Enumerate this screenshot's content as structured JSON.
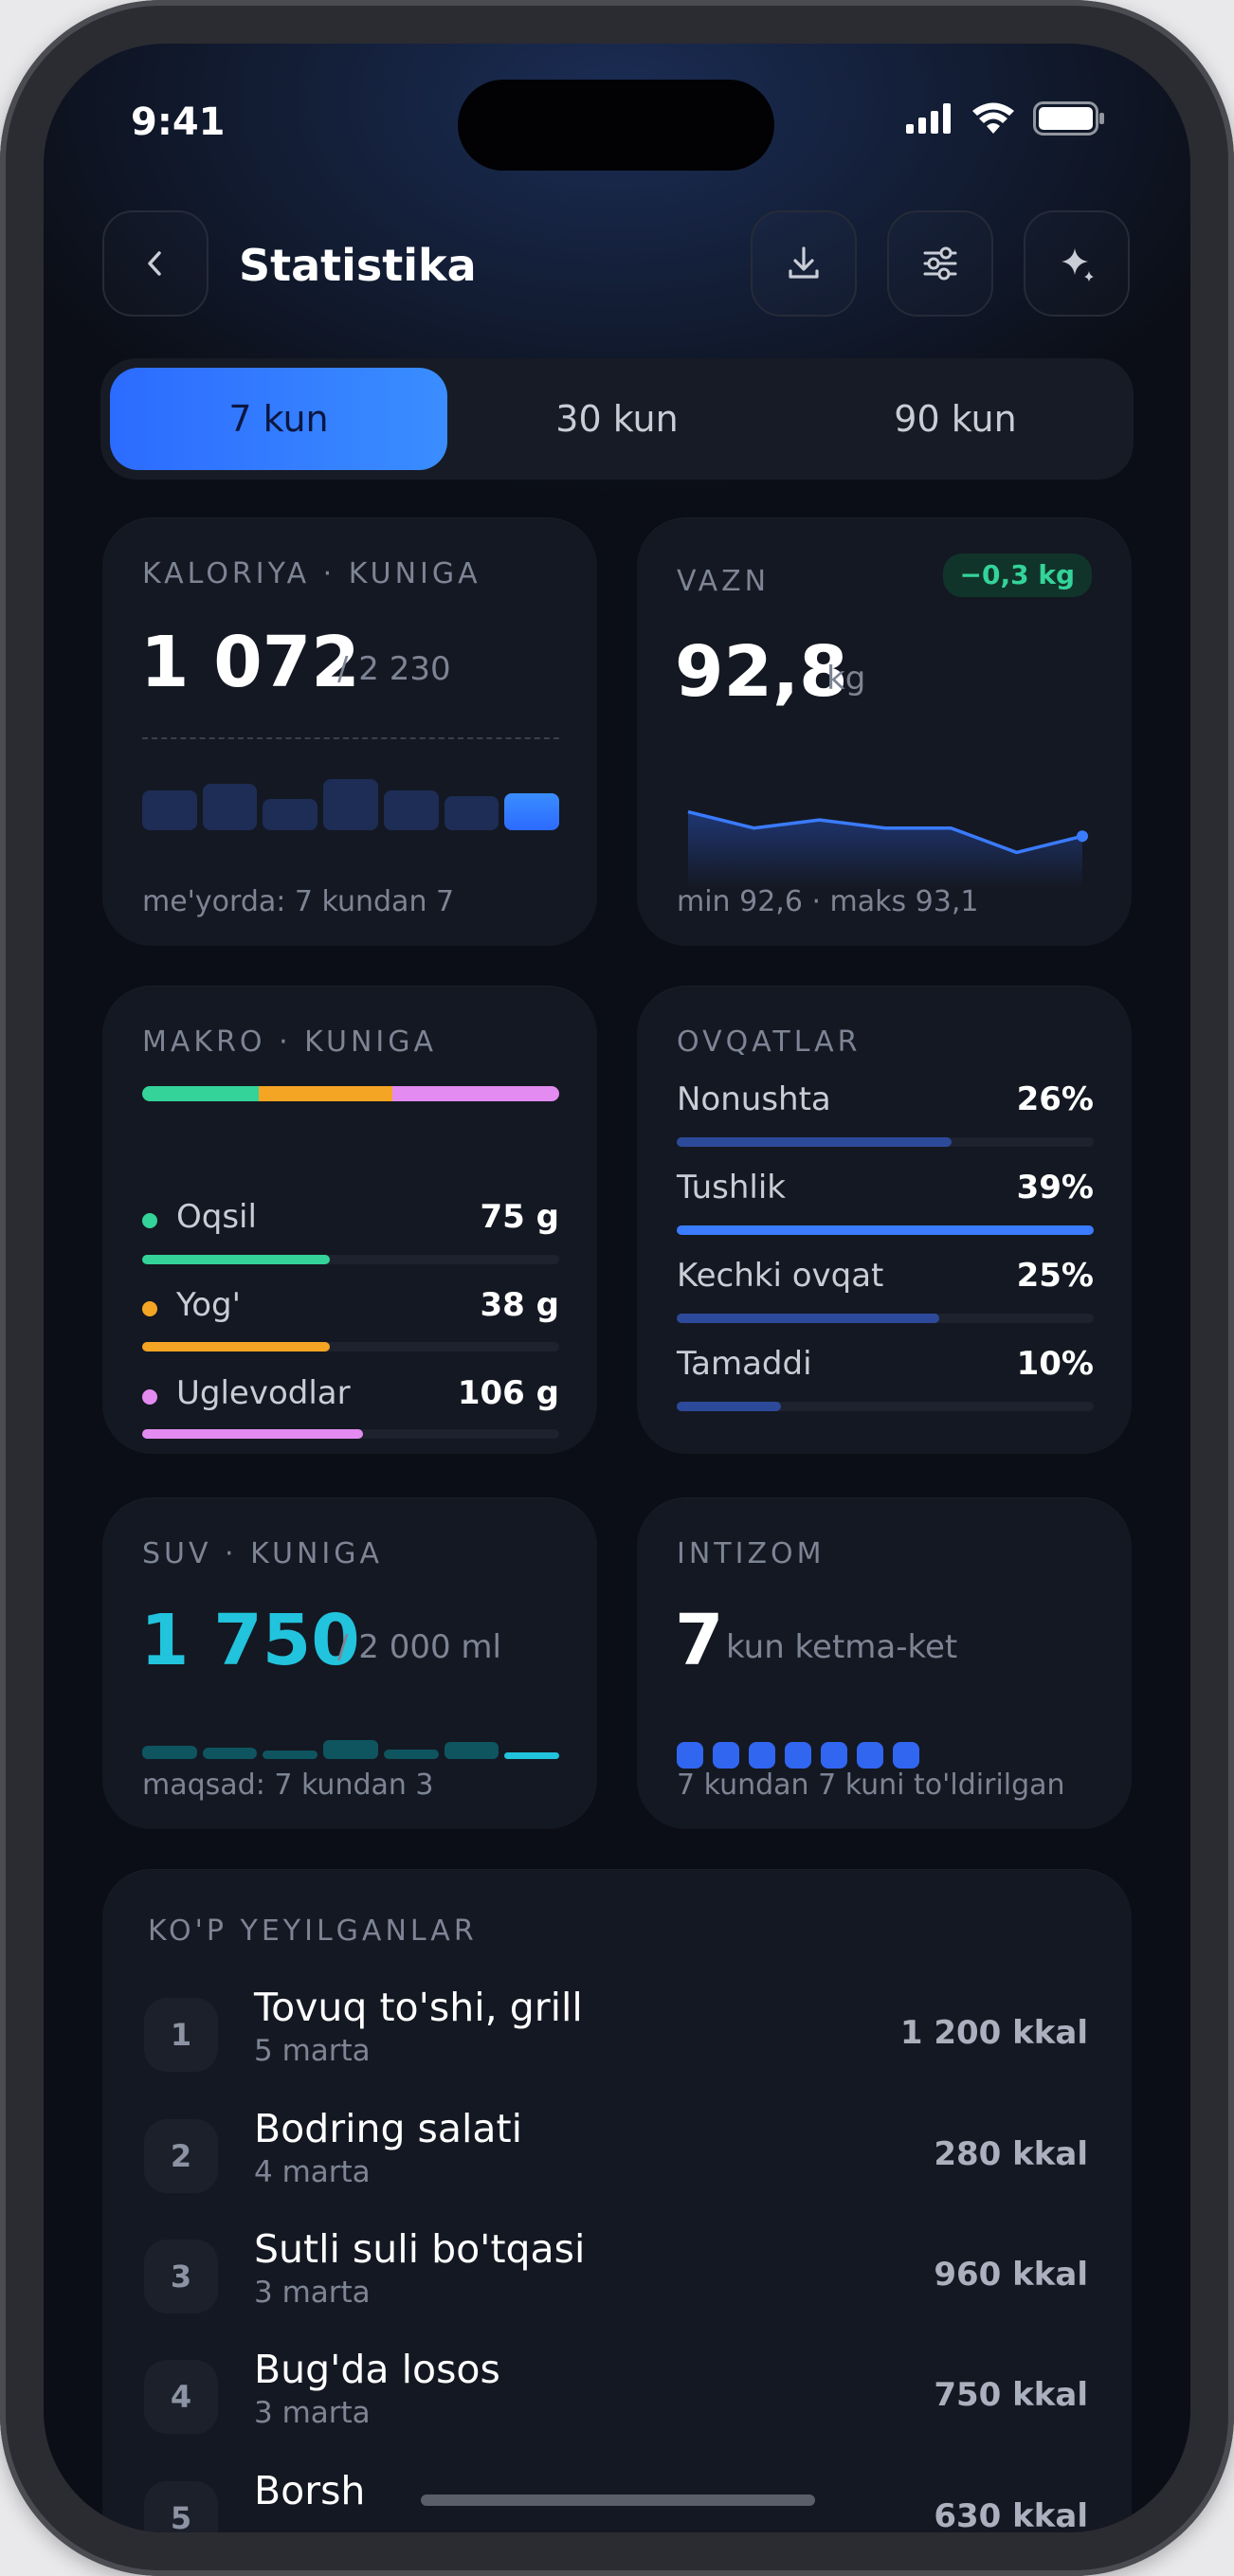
{
  "status": {
    "time": "9:41"
  },
  "header": {
    "title": "Statistika"
  },
  "icons": {
    "back": "chevron-left-icon",
    "download": "download-icon",
    "filter": "sliders-icon",
    "ai": "sparkle-icon"
  },
  "periods": [
    {
      "label": "7 kun",
      "active": true
    },
    {
      "label": "30 kun",
      "active": false
    },
    {
      "label": "90 kun",
      "active": false
    }
  ],
  "calories": {
    "caption": "KALORIYA · KUNIGA",
    "value": "1 072",
    "target": "/ 2 230",
    "note": "me'yorda: 7 kundan 7",
    "bar_values": [
      0.6,
      0.7,
      0.47,
      0.77,
      0.6,
      0.52,
      0.55
    ]
  },
  "weight": {
    "caption": "VAZN",
    "badge": "−0,3 kg",
    "value": "92,8",
    "unit": "kg",
    "note": "min 92,6 · maks 93,1",
    "series": [
      93.1,
      92.9,
      93.0,
      92.9,
      92.9,
      92.6,
      92.8
    ]
  },
  "macros": {
    "caption": "MAKRO · KUNIGA",
    "split": [
      0.28,
      0.32,
      0.4
    ],
    "items": [
      {
        "label": "Oqsil",
        "value": "75 g",
        "color": "#34d399",
        "fill": 0.45
      },
      {
        "label": "Yog'",
        "value": "38 g",
        "color": "#f5a524",
        "fill": 0.45
      },
      {
        "label": "Uglevodlar",
        "value": "106 g",
        "color": "#e38bf0",
        "fill": 0.53
      }
    ]
  },
  "meals": {
    "caption": "OVQATLAR",
    "items": [
      {
        "label": "Nonushta",
        "value": "26%",
        "fill": 0.66,
        "color": "#2d4a9a"
      },
      {
        "label": "Tushlik",
        "value": "39%",
        "fill": 1.0,
        "color": "#3a7bff"
      },
      {
        "label": "Kechki ovqat",
        "value": "25%",
        "fill": 0.63,
        "color": "#2d4a9a"
      },
      {
        "label": "Tamaddi",
        "value": "10%",
        "fill": 0.25,
        "color": "#2d4a9a"
      }
    ]
  },
  "water": {
    "caption": "SUV · KUNIGA",
    "value": "1 750",
    "target": "/ 2 000 ml",
    "note": "maqsad: 7 kundan 3",
    "levels": [
      0.55,
      0.45,
      0.35,
      0.75,
      0.4,
      0.68,
      0.28
    ]
  },
  "discipline": {
    "caption": "INTIZOM",
    "value": "7",
    "unit": "kun ketma-ket",
    "note": "7 kundan 7 kuni to'ldirilgan",
    "days_filled": 7
  },
  "top_foods": {
    "caption": "KO'P YEYILGANLAR",
    "items": [
      {
        "rank": "1",
        "name": "Tovuq to'shi, grill",
        "count": "5 marta",
        "kcal": "1 200 kkal"
      },
      {
        "rank": "2",
        "name": "Bodring salati",
        "count": "4 marta",
        "kcal": "280 kkal"
      },
      {
        "rank": "3",
        "name": "Sutli suli bo'tqasi",
        "count": "3 marta",
        "kcal": "960 kkal"
      },
      {
        "rank": "4",
        "name": "Bug'da losos",
        "count": "3 marta",
        "kcal": "750 kkal"
      },
      {
        "rank": "5",
        "name": "Borsh",
        "count": "",
        "kcal": "630 kkal"
      }
    ]
  },
  "colors": {
    "accent": "#3a7bff",
    "water": "#22c3dc",
    "positive": "#34d399"
  }
}
